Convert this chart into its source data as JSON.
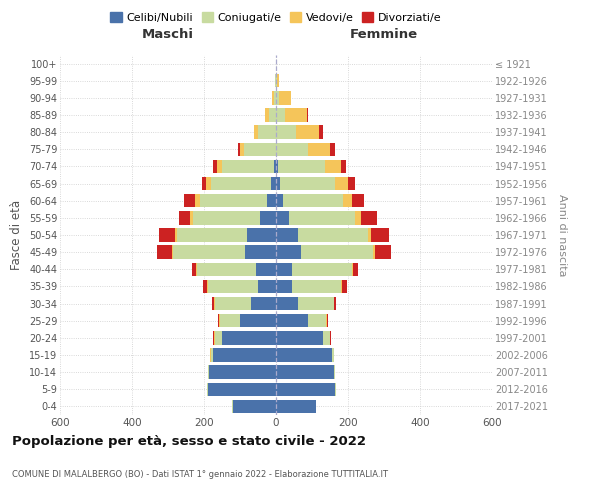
{
  "age_groups": [
    "0-4",
    "5-9",
    "10-14",
    "15-19",
    "20-24",
    "25-29",
    "30-34",
    "35-39",
    "40-44",
    "45-49",
    "50-54",
    "55-59",
    "60-64",
    "65-69",
    "70-74",
    "75-79",
    "80-84",
    "85-89",
    "90-94",
    "95-99",
    "100+"
  ],
  "birth_years": [
    "2017-2021",
    "2012-2016",
    "2007-2011",
    "2002-2006",
    "1997-2001",
    "1992-1996",
    "1987-1991",
    "1982-1986",
    "1977-1981",
    "1972-1976",
    "1967-1971",
    "1962-1966",
    "1957-1961",
    "1952-1956",
    "1947-1951",
    "1942-1946",
    "1937-1941",
    "1932-1936",
    "1927-1931",
    "1922-1926",
    "≤ 1921"
  ],
  "male": {
    "celibi": [
      120,
      190,
      185,
      175,
      150,
      100,
      70,
      50,
      55,
      85,
      80,
      45,
      25,
      15,
      5,
      0,
      0,
      0,
      0,
      0,
      0
    ],
    "coniugati": [
      1,
      2,
      3,
      5,
      20,
      55,
      100,
      140,
      165,
      200,
      195,
      185,
      185,
      165,
      145,
      90,
      50,
      20,
      5,
      2,
      0
    ],
    "vedovi": [
      0,
      1,
      1,
      2,
      2,
      2,
      2,
      2,
      3,
      5,
      5,
      10,
      15,
      15,
      15,
      10,
      10,
      10,
      5,
      1,
      0
    ],
    "divorziati": [
      0,
      0,
      1,
      1,
      2,
      3,
      5,
      10,
      10,
      40,
      45,
      30,
      30,
      10,
      10,
      5,
      0,
      0,
      0,
      0,
      0
    ]
  },
  "female": {
    "nubili": [
      110,
      165,
      160,
      155,
      130,
      90,
      60,
      45,
      45,
      70,
      60,
      35,
      20,
      10,
      5,
      0,
      0,
      0,
      0,
      0,
      0
    ],
    "coniugate": [
      1,
      2,
      3,
      5,
      20,
      50,
      100,
      135,
      165,
      200,
      195,
      185,
      165,
      155,
      130,
      90,
      55,
      25,
      8,
      2,
      0
    ],
    "vedove": [
      0,
      0,
      0,
      1,
      1,
      2,
      2,
      2,
      3,
      5,
      10,
      15,
      25,
      35,
      45,
      60,
      65,
      60,
      35,
      5,
      0
    ],
    "divorziate": [
      0,
      0,
      0,
      1,
      2,
      3,
      5,
      15,
      15,
      45,
      50,
      45,
      35,
      20,
      15,
      15,
      10,
      5,
      0,
      0,
      0
    ]
  },
  "colors": {
    "celibi": "#4a72aa",
    "coniugati": "#c8dba0",
    "vedovi": "#f5c55a",
    "divorziati": "#cc2222"
  },
  "title": "Popolazione per età, sesso e stato civile - 2022",
  "subtitle": "COMUNE DI MALALBERGO (BO) - Dati ISTAT 1° gennaio 2022 - Elaborazione TUTTITALIA.IT",
  "xlabel_left": "Maschi",
  "xlabel_right": "Femmine",
  "ylabel_left": "Fasce di età",
  "ylabel_right": "Anni di nascita",
  "xlim": 600,
  "legend_labels": [
    "Celibi/Nubili",
    "Coniugati/e",
    "Vedovi/e",
    "Divorziati/e"
  ]
}
